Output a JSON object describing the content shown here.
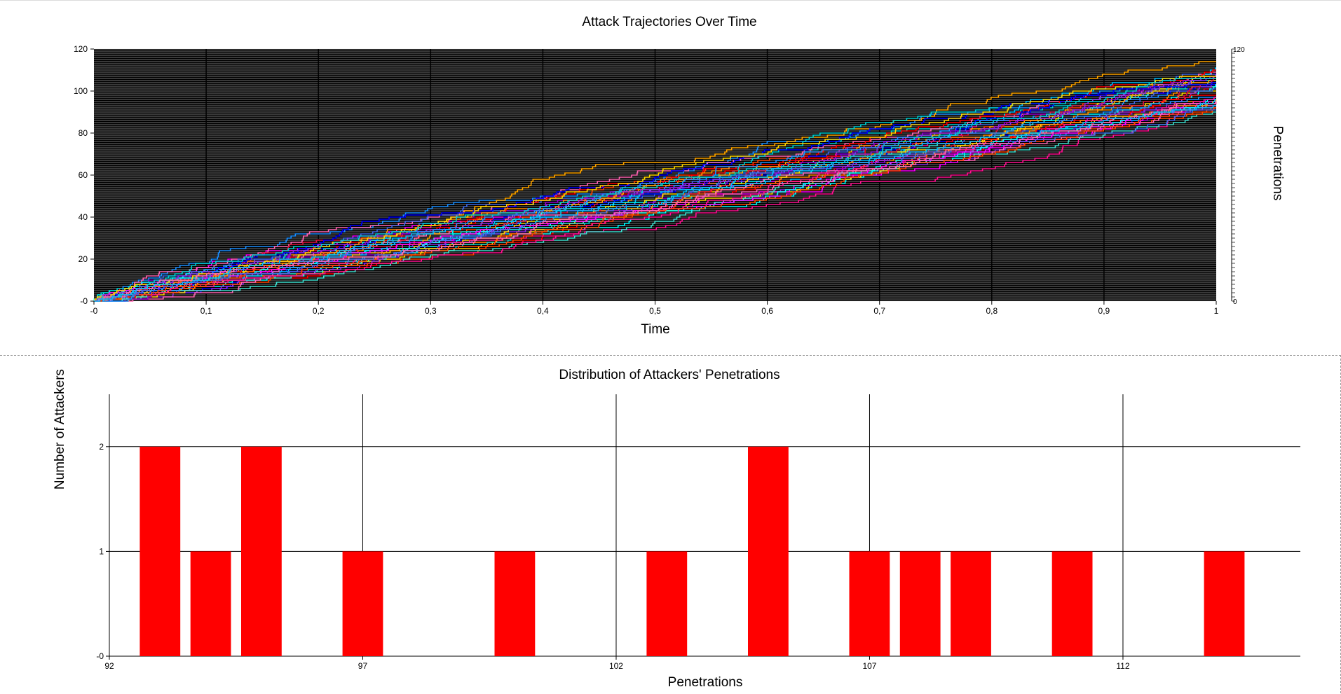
{
  "chart_data": [
    {
      "type": "line",
      "title": "Attack Trajectories Over Time",
      "xlabel": "Time",
      "ylabel": "Penetrations",
      "xlim": [
        0,
        1
      ],
      "ylim": [
        0,
        120
      ],
      "x_ticks": [
        "-0",
        "0,1",
        "0,2",
        "0,3",
        "0,4",
        "0,5",
        "0,6",
        "0,7",
        "0,8",
        "0,9",
        "1"
      ],
      "y_ticks": [
        "-0",
        "20",
        "40",
        "60",
        "80",
        "100",
        "120"
      ],
      "right_axis_ticks": [
        "0",
        "120"
      ],
      "grid": true,
      "background": "#000000",
      "series_colors": [
        "#ff0000",
        "#0000ff",
        "#00ffff",
        "#ff00ff",
        "#ff8c00",
        "#8a2be2",
        "#ffd700",
        "#1e90ff",
        "#ff1493",
        "#00ced1",
        "#ff4500",
        "#4169e1",
        "#ff69b4",
        "#00bfff",
        "#ffa500",
        "#dc143c",
        "#9400d3",
        "#40e0d0"
      ],
      "series": [
        {
          "final": 93
        },
        {
          "final": 93
        },
        {
          "final": 94
        },
        {
          "final": 95
        },
        {
          "final": 95
        },
        {
          "final": 97
        },
        {
          "final": 100
        },
        {
          "final": 103
        },
        {
          "final": 105
        },
        {
          "final": 105
        },
        {
          "final": 107
        },
        {
          "final": 108
        },
        {
          "final": 109
        },
        {
          "final": 111
        },
        {
          "final": 114
        }
      ]
    },
    {
      "type": "bar",
      "title": "Distribution of Attackers' Penetrations",
      "xlabel": "Penetrations",
      "ylabel": "Number of Attackers",
      "xlim": [
        92,
        115.5
      ],
      "ylim": [
        0,
        2.5
      ],
      "x_ticks": [
        "92",
        "97",
        "102",
        "107",
        "112"
      ],
      "y_ticks": [
        "-0",
        "1",
        "2"
      ],
      "bar_color": "#ff0000",
      "grid": true,
      "categories": [
        93,
        94,
        95,
        97,
        100,
        103,
        105,
        107,
        108,
        109,
        111,
        114
      ],
      "values": [
        2,
        1,
        2,
        1,
        1,
        1,
        2,
        1,
        1,
        1,
        1,
        1
      ]
    }
  ]
}
